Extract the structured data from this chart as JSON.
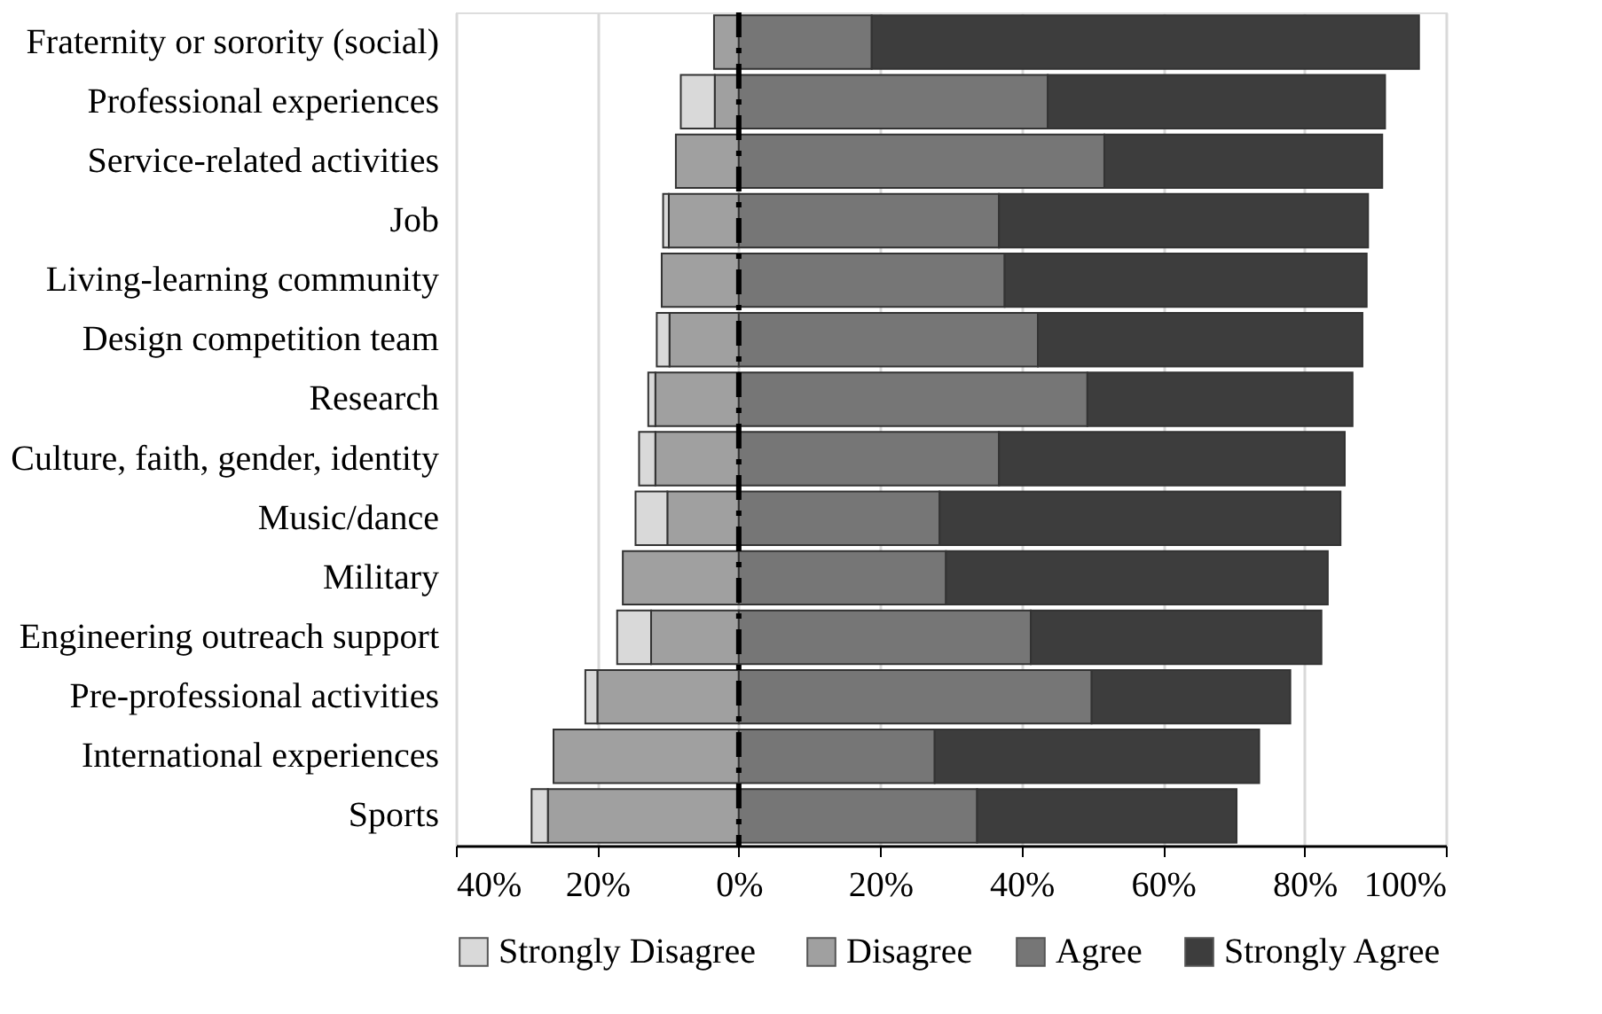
{
  "chart_data": {
    "type": "bar",
    "orientation": "horizontal",
    "stacked": true,
    "categories": [
      "Fraternity or sorority (social)",
      "Professional experiences",
      "Service-related activities",
      "Job",
      "Living-learning community",
      "Design competition team",
      "Research",
      "Culture, faith, gender, identity",
      "Music/dance",
      "Military",
      "Engineering outreach support",
      "Pre-professional activities",
      "International experiences",
      "Sports"
    ],
    "series": [
      {
        "name": "Disagree",
        "color": "#a0a0a0",
        "values": [
          -3.5,
          -3.4,
          -8.9,
          -9.9,
          -10.9,
          -9.8,
          -11.8,
          -11.8,
          -10.1,
          -16.4,
          -12.4,
          -20.0,
          -26.2,
          -27.0
        ]
      },
      {
        "name": "Strongly  Disagree",
        "color": "#d9d9d9",
        "values": [
          null,
          -4.8,
          null,
          -0.8,
          null,
          -1.8,
          -1.0,
          -2.3,
          -4.5,
          null,
          -4.8,
          -1.7,
          null,
          -2.3
        ]
      },
      {
        "name": "Agree",
        "color": "#767676",
        "values": [
          18.8,
          43.7,
          51.7,
          36.8,
          37.6,
          42.3,
          49.3,
          36.8,
          28.4,
          29.3,
          41.3,
          49.9,
          27.7,
          33.7
        ]
      },
      {
        "name": "Strongly Agree",
        "color": "#3d3d3d",
        "values": [
          77.4,
          47.7,
          39.3,
          52.2,
          51.2,
          45.9,
          37.5,
          48.9,
          56.7,
          54.0,
          41.1,
          28.1,
          45.9,
          36.7
        ]
      }
    ],
    "xlim": [
      -40,
      100
    ],
    "xticks": [
      {
        "value": -40,
        "label": "40%"
      },
      {
        "value": -20,
        "label": "20%"
      },
      {
        "value": 0,
        "label": "0%"
      },
      {
        "value": 20,
        "label": "20%"
      },
      {
        "value": 40,
        "label": "40%"
      },
      {
        "value": 60,
        "label": "60%"
      },
      {
        "value": 80,
        "label": "80%"
      },
      {
        "value": 100,
        "label": "100%"
      }
    ],
    "ref_lines": [
      {
        "axis": "x",
        "value": 0,
        "color": "#000000",
        "line_style": "dashed"
      }
    ],
    "grid": "x",
    "legend": "bottom"
  }
}
